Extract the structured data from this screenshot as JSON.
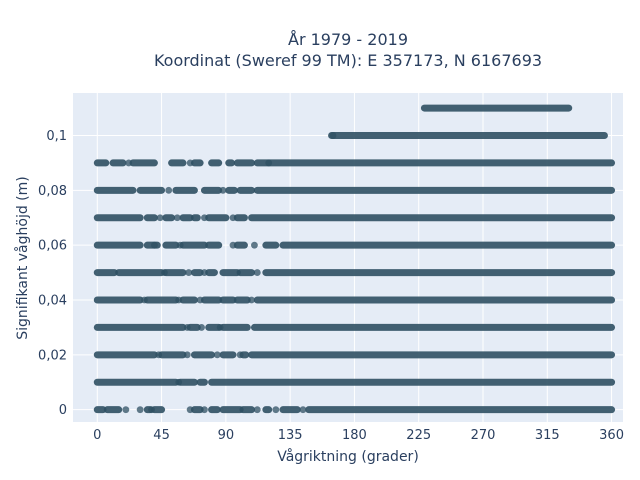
{
  "chart_data": {
    "type": "scatter",
    "title_line1": "År 1979 - 2019",
    "title_line2": "Koordinat (Sweref 99 TM): E 357173, N 6167693",
    "xlabel": "Vågriktning (grader)",
    "ylabel": "Signifikant våghöjd (m)",
    "xlim": [
      -17,
      368
    ],
    "ylim": [
      -0.0045,
      0.1155
    ],
    "x_ticks": [
      0,
      45,
      90,
      135,
      180,
      225,
      270,
      315,
      360
    ],
    "x_tick_labels": [
      "0",
      "45",
      "90",
      "135",
      "180",
      "225",
      "270",
      "315",
      "360"
    ],
    "y_ticks": [
      0,
      0.02,
      0.04,
      0.06,
      0.08,
      0.1
    ],
    "y_tick_labels": [
      "0",
      "0,02",
      "0,04",
      "0,06",
      "0,08",
      "0,1"
    ],
    "grid": true,
    "marker_color": "#2f5063",
    "plot_bg": "#e5ecf6",
    "rows": [
      {
        "y": 0.11,
        "segments": [
          [
            229,
            330
          ]
        ]
      },
      {
        "y": 0.1,
        "segments": [
          [
            164,
            355
          ]
        ]
      },
      {
        "y": 0.09,
        "segments": [
          [
            0,
            6
          ],
          [
            11,
            18
          ],
          [
            25,
            40
          ],
          [
            52,
            60
          ],
          [
            68,
            72
          ],
          [
            80,
            85
          ],
          [
            92,
            94
          ],
          [
            98,
            108
          ],
          [
            112,
            360
          ]
        ]
      },
      {
        "y": 0.08,
        "segments": [
          [
            0,
            25
          ],
          [
            30,
            45
          ],
          [
            55,
            68
          ],
          [
            75,
            85
          ],
          [
            92,
            96
          ],
          [
            100,
            108
          ],
          [
            112,
            360
          ]
        ]
      },
      {
        "y": 0.07,
        "segments": [
          [
            0,
            30
          ],
          [
            35,
            40
          ],
          [
            48,
            52
          ],
          [
            60,
            65
          ],
          [
            68,
            70
          ],
          [
            78,
            90
          ],
          [
            98,
            103
          ],
          [
            108,
            360
          ]
        ]
      },
      {
        "y": 0.06,
        "segments": [
          [
            0,
            30
          ],
          [
            35,
            42
          ],
          [
            48,
            55
          ],
          [
            60,
            75
          ],
          [
            78,
            85
          ],
          [
            98,
            103
          ],
          [
            118,
            125
          ],
          [
            130,
            360
          ]
        ]
      },
      {
        "y": 0.05,
        "segments": [
          [
            0,
            12
          ],
          [
            15,
            45
          ],
          [
            48,
            60
          ],
          [
            68,
            72
          ],
          [
            78,
            82
          ],
          [
            88,
            98
          ],
          [
            100,
            108
          ],
          [
            118,
            360
          ]
        ]
      },
      {
        "y": 0.04,
        "segments": [
          [
            0,
            30
          ],
          [
            35,
            55
          ],
          [
            60,
            68
          ],
          [
            75,
            85
          ],
          [
            88,
            95
          ],
          [
            98,
            105
          ],
          [
            112,
            360
          ]
        ]
      },
      {
        "y": 0.03,
        "segments": [
          [
            0,
            60
          ],
          [
            65,
            70
          ],
          [
            78,
            85
          ],
          [
            88,
            105
          ],
          [
            110,
            360
          ]
        ]
      },
      {
        "y": 0.02,
        "segments": [
          [
            0,
            40
          ],
          [
            45,
            60
          ],
          [
            68,
            80
          ],
          [
            88,
            95
          ],
          [
            102,
            104
          ],
          [
            108,
            360
          ]
        ]
      },
      {
        "y": 0.01,
        "segments": [
          [
            0,
            55
          ],
          [
            58,
            68
          ],
          [
            72,
            75
          ],
          [
            80,
            360
          ]
        ]
      },
      {
        "y": 0.0,
        "segments": [
          [
            0,
            4
          ],
          [
            7,
            15
          ],
          [
            35,
            37
          ],
          [
            40,
            45
          ],
          [
            68,
            72
          ],
          [
            80,
            84
          ],
          [
            88,
            100
          ],
          [
            102,
            108
          ],
          [
            118,
            120
          ],
          [
            130,
            140
          ],
          [
            148,
            360
          ]
        ]
      }
    ],
    "scattered_points": [
      {
        "x": 165,
        "y": 0.1
      },
      {
        "x": 120,
        "y": 0.09
      },
      {
        "x": 65,
        "y": 0.09
      },
      {
        "x": 22,
        "y": 0.09
      },
      {
        "x": 50,
        "y": 0.08
      },
      {
        "x": 88,
        "y": 0.08
      },
      {
        "x": 44,
        "y": 0.07
      },
      {
        "x": 56,
        "y": 0.07
      },
      {
        "x": 75,
        "y": 0.07
      },
      {
        "x": 95,
        "y": 0.07
      },
      {
        "x": 40,
        "y": 0.06
      },
      {
        "x": 58,
        "y": 0.06
      },
      {
        "x": 95,
        "y": 0.06
      },
      {
        "x": 110,
        "y": 0.06
      },
      {
        "x": 47,
        "y": 0.05
      },
      {
        "x": 64,
        "y": 0.05
      },
      {
        "x": 75,
        "y": 0.05
      },
      {
        "x": 112,
        "y": 0.05
      },
      {
        "x": 33,
        "y": 0.04
      },
      {
        "x": 57,
        "y": 0.04
      },
      {
        "x": 72,
        "y": 0.04
      },
      {
        "x": 108,
        "y": 0.04
      },
      {
        "x": 63,
        "y": 0.03
      },
      {
        "x": 73,
        "y": 0.03
      },
      {
        "x": 86,
        "y": 0.03
      },
      {
        "x": 43,
        "y": 0.02
      },
      {
        "x": 63,
        "y": 0.02
      },
      {
        "x": 84,
        "y": 0.02
      },
      {
        "x": 100,
        "y": 0.02
      },
      {
        "x": 57,
        "y": 0.01
      },
      {
        "x": 20,
        "y": 0.0
      },
      {
        "x": 30,
        "y": 0.0
      },
      {
        "x": 38,
        "y": 0.0
      },
      {
        "x": 65,
        "y": 0.0
      },
      {
        "x": 75,
        "y": 0.0
      },
      {
        "x": 112,
        "y": 0.0
      },
      {
        "x": 125,
        "y": 0.0
      },
      {
        "x": 144,
        "y": 0.0
      }
    ]
  }
}
